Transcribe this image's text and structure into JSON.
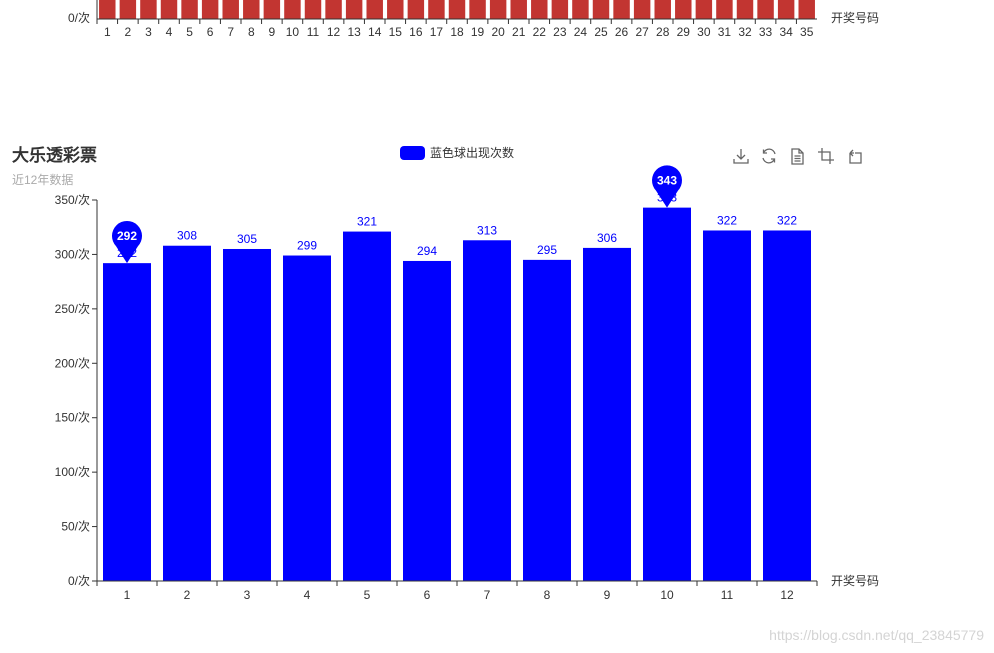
{
  "top_chart": {
    "y_tick": "0/次",
    "x_axis_name": "开奖号码",
    "bar_color": "#c23531",
    "categories": [
      "1",
      "2",
      "3",
      "4",
      "5",
      "6",
      "7",
      "8",
      "9",
      "10",
      "11",
      "12",
      "13",
      "14",
      "15",
      "16",
      "17",
      "18",
      "19",
      "20",
      "21",
      "22",
      "23",
      "24",
      "25",
      "26",
      "27",
      "28",
      "29",
      "30",
      "31",
      "32",
      "33",
      "34",
      "35"
    ]
  },
  "chart_data": {
    "type": "bar",
    "title": "大乐透彩票",
    "subtitle": "近12年数据",
    "legend": "蓝色球出现次数",
    "legend_position": "top-center",
    "color": "#0000ff",
    "categories": [
      "1",
      "2",
      "3",
      "4",
      "5",
      "6",
      "7",
      "8",
      "9",
      "10",
      "11",
      "12"
    ],
    "series": [
      {
        "name": "蓝色球出现次数",
        "values": [
          292,
          308,
          305,
          299,
          321,
          294,
          313,
          295,
          306,
          343,
          322,
          322
        ]
      }
    ],
    "ylim": [
      0,
      350
    ],
    "y_ticks": [
      "0/次",
      "50/次",
      "100/次",
      "150/次",
      "200/次",
      "250/次",
      "300/次",
      "350/次"
    ],
    "y_tick_values": [
      0,
      50,
      100,
      150,
      200,
      250,
      300,
      350
    ],
    "xlabel": "开奖号码",
    "ylabel": "",
    "grid": false,
    "mark_points": [
      {
        "category": "1",
        "value": 292
      },
      {
        "category": "10",
        "value": 343
      }
    ]
  },
  "toolbox": [
    "download-icon",
    "refresh-icon",
    "data-view-icon",
    "zoom-icon",
    "restore-icon"
  ],
  "watermark": "https://blog.csdn.net/qq_23845779"
}
